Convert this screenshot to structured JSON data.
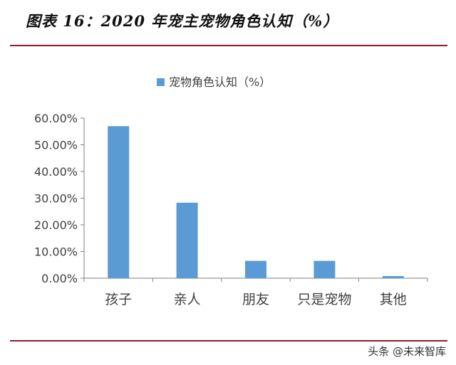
{
  "header": {
    "figure_title": "图表 16：2020 年宠主宠物角色认知（%）"
  },
  "footer": {
    "watermark": "头条 @未来智库"
  },
  "colors": {
    "bar": "#5b9bd5",
    "rule": "#8b1d2c",
    "axis": "#7f7f7f",
    "text": "#404040"
  },
  "chart_data": {
    "type": "bar",
    "categories": [
      "孩子",
      "亲人",
      "朋友",
      "只是宠物",
      "其他"
    ],
    "series": [
      {
        "name": "宠物角色认知（%）",
        "values": [
          57.0,
          28.3,
          6.5,
          6.5,
          0.8
        ]
      }
    ],
    "yticks": [
      "0.00%",
      "10.00%",
      "20.00%",
      "30.00%",
      "40.00%",
      "50.00%",
      "60.00%"
    ],
    "ylim": [
      0,
      60
    ],
    "legend_position": "top-center",
    "grid": false
  }
}
